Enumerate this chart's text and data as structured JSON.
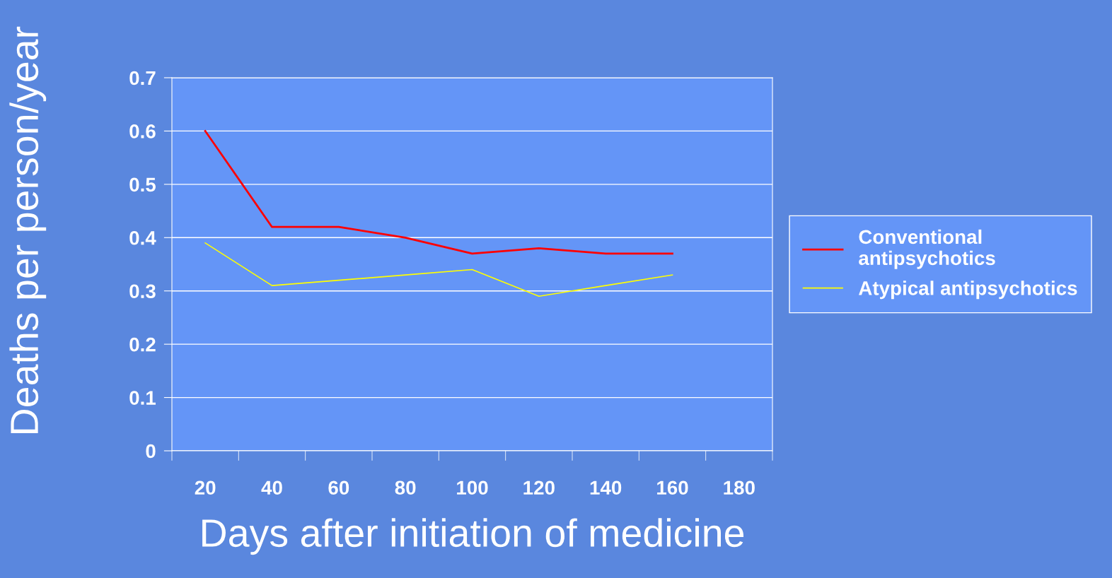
{
  "chart_data": {
    "type": "line",
    "xlabel": "Days after initiation of medicine",
    "ylabel": "Deaths per person/year",
    "categories": [
      "20",
      "40",
      "60",
      "80",
      "100",
      "120",
      "140",
      "160",
      "180"
    ],
    "series": [
      {
        "name": "Conventional\nantipsychotics",
        "color": "#ff0000",
        "values": [
          0.6,
          0.42,
          0.42,
          0.4,
          0.37,
          0.38,
          0.37,
          0.37,
          null
        ]
      },
      {
        "name": "Atypical antipsychotics",
        "color": "#ffff00",
        "values": [
          0.39,
          0.31,
          0.32,
          0.33,
          0.34,
          0.29,
          0.31,
          0.33,
          null
        ]
      }
    ],
    "ylim": [
      0,
      0.7
    ],
    "yticks": [
      {
        "value": 0,
        "label": "0"
      },
      0.1,
      0.2,
      0.3,
      0.4,
      0.5,
      0.6,
      0.7
    ],
    "grid": "y",
    "legend": "right",
    "marker": "none",
    "line_style": "solid"
  }
}
